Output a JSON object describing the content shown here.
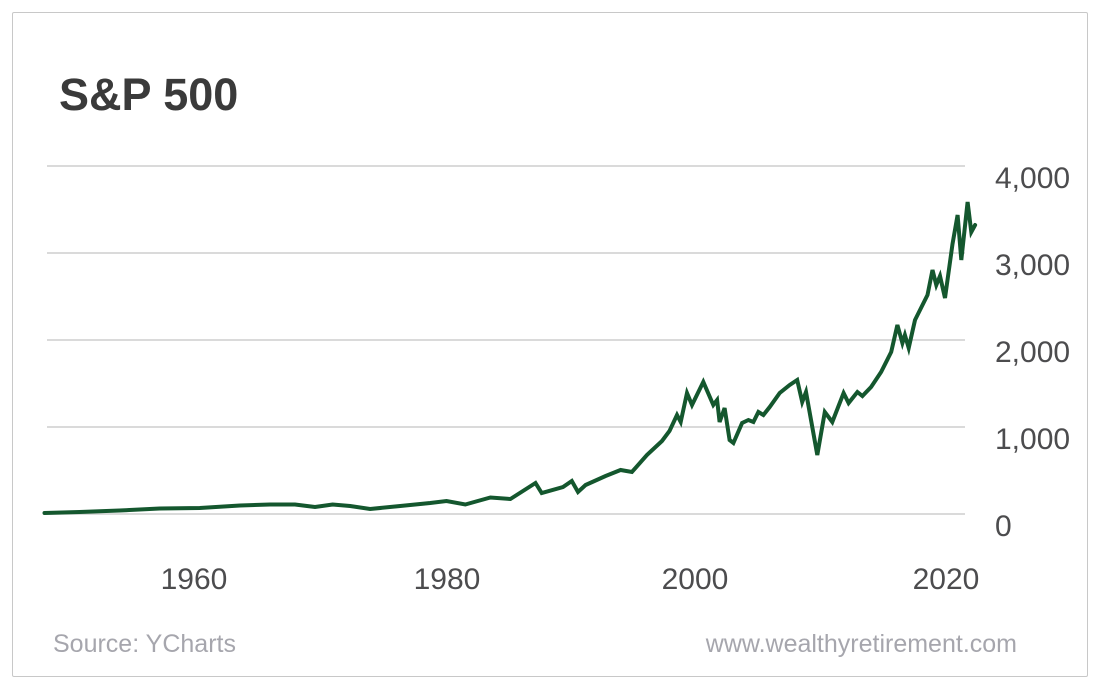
{
  "chart": {
    "title": "S&P 500",
    "source_label": "Source: YCharts",
    "website_label": "www.wealthyretirement.com",
    "line_color": "#14572e",
    "grid_color": "#cdcdcd",
    "y_tick_labels": [
      "4,000",
      "3,000",
      "2,000",
      "1,000",
      "0"
    ],
    "x_tick_labels": [
      "1960",
      "1980",
      "2000",
      "2020"
    ]
  },
  "chart_data": {
    "type": "line",
    "title": "S&P 500",
    "xlabel": "",
    "ylabel": "",
    "x_ticks": [
      1960,
      1980,
      2000,
      2020
    ],
    "y_ticks": [
      4000,
      3000,
      2000,
      1000,
      0
    ],
    "xlim": [
      1949,
      2023.5
    ],
    "ylim": [
      0,
      4000
    ],
    "grid": "horizontal",
    "legend_position": "none",
    "source": "Source: YCharts",
    "watermark": "www.wealthyretirement.com",
    "series": [
      {
        "name": "S&P 500 index level",
        "x": [
          1949.1,
          1951.9,
          1955.1,
          1958.3,
          1961.5,
          1964.7,
          1967.1,
          1969.1,
          1970.7,
          1972.1,
          1973.5,
          1975.1,
          1977.5,
          1979.9,
          1981.2,
          1982.7,
          1983.7,
          1984.7,
          1986.3,
          1988.3,
          1988.8,
          1990.5,
          1991.2,
          1991.7,
          1992.3,
          1993.9,
          1995.1,
          1996.0,
          1997.2,
          1998.4,
          1999.0,
          1999.6,
          1999.9,
          2000.4,
          2000.8,
          2001.7,
          2002.5,
          2002.8,
          2003.0,
          2003.4,
          2003.8,
          2004.1,
          2004.8,
          2005.3,
          2005.7,
          2006.1,
          2006.5,
          2007.0,
          2007.8,
          2008.6,
          2009.2,
          2009.6,
          2009.9,
          2010.8,
          2011.4,
          2012.0,
          2012.9,
          2013.3,
          2014.0,
          2014.4,
          2015.1,
          2015.9,
          2016.7,
          2017.2,
          2017.6,
          2017.8,
          2018.1,
          2018.6,
          2019.6,
          2020.0,
          2020.3,
          2020.6,
          2021.0,
          2021.6,
          2022.0,
          2022.3,
          2022.8,
          2023.1,
          2023.4
        ],
        "values": [
          12,
          23,
          40,
          63,
          69,
          98,
          109,
          109,
          80,
          109,
          92,
          57,
          92,
          126,
          149,
          109,
          149,
          190,
          172,
          356,
          241,
          310,
          379,
          253,
          333,
          437,
          506,
          483,
          678,
          839,
          954,
          1138,
          1057,
          1391,
          1253,
          1518,
          1253,
          1310,
          1057,
          1218,
          851,
          816,
          1046,
          1080,
          1057,
          1172,
          1138,
          1230,
          1391,
          1483,
          1540,
          1287,
          1402,
          678,
          1172,
          1057,
          1391,
          1276,
          1402,
          1356,
          1460,
          1632,
          1862,
          2172,
          1966,
          2057,
          1908,
          2230,
          2517,
          2805,
          2632,
          2736,
          2483,
          3103,
          3437,
          2920,
          3586,
          3241,
          3322
        ]
      }
    ]
  }
}
